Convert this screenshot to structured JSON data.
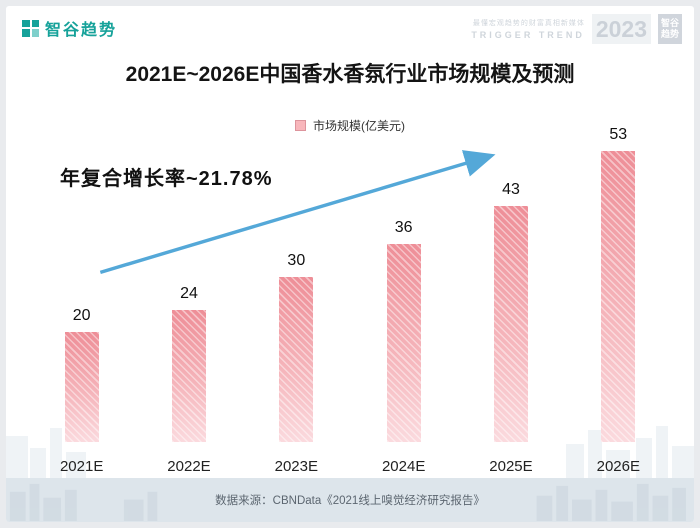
{
  "header": {
    "logo_text": "智谷趋势",
    "watermark": {
      "tagline": "最懂宏观趋势的财富真相新媒体",
      "brand": "TRIGGER TREND",
      "year": "2023",
      "stack_line1": "智谷",
      "stack_line2": "趋势"
    }
  },
  "chart_data": {
    "type": "bar",
    "title": "2021E~2026E中国香水香氛行业市场规模及预测",
    "legend": [
      "市场规模(亿美元)"
    ],
    "categories": [
      "2021E",
      "2022E",
      "2023E",
      "2024E",
      "2025E",
      "2026E"
    ],
    "values": [
      20,
      24,
      30,
      36,
      43,
      53
    ],
    "annotation": "年复合增长率~21.78%",
    "ylim": [
      0,
      60
    ],
    "grid": false,
    "legend_position": "top-center",
    "bar_color_top": "#ee8e97",
    "bar_color_bottom": "#fbdade",
    "arrow_color": "#54a8d8"
  },
  "footer": {
    "source": "数据来源：CBNData《2021线上嗅觉经济研究报告》"
  }
}
